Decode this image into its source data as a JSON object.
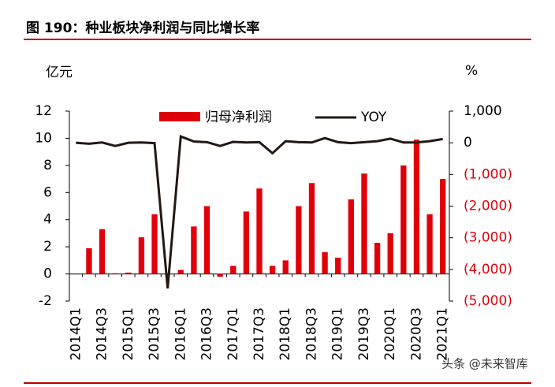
{
  "chart_data": {
    "type": "bar_line",
    "title": "图 190：种业板块净利润与同比增长率",
    "y_label": "亿元",
    "y2_label": "%",
    "watermark": "头条 @未来智库",
    "categories": [
      "2014Q1",
      null,
      "2014Q3",
      null,
      "2015Q1",
      null,
      "2015Q3",
      null,
      "2016Q1",
      null,
      "2016Q3",
      null,
      "2017Q1",
      null,
      "2017Q3",
      null,
      "2018Q1",
      null,
      "2018Q3",
      null,
      "2019Q1",
      null,
      "2019Q3",
      null,
      "2020Q1",
      null,
      "2020Q3",
      null,
      "2021Q1"
    ],
    "series": [
      {
        "name": "归母净利润",
        "type": "bar",
        "color": "#e0000a",
        "values": [
          0,
          1.9,
          3.3,
          0.05,
          0.1,
          2.7,
          4.4,
          0,
          0.3,
          3.5,
          5.0,
          -0.2,
          0.6,
          4.6,
          6.3,
          0.6,
          1.0,
          5.0,
          6.7,
          1.6,
          1.2,
          5.5,
          7.4,
          2.3,
          3.0,
          8.0,
          9.9,
          4.4,
          7.0
        ]
      },
      {
        "name": "YOY",
        "type": "line",
        "color": "#231815",
        "axis": "y2",
        "values": [
          0,
          -30,
          10,
          -100,
          0,
          10,
          -10,
          -4600,
          200,
          40,
          20,
          -100,
          30,
          10,
          20,
          -330,
          50,
          20,
          10,
          150,
          20,
          -10,
          20,
          50,
          130,
          10,
          10,
          50,
          120
        ]
      }
    ],
    "ylim": [
      -2,
      12
    ],
    "yticks": [
      -2,
      0,
      2,
      4,
      6,
      8,
      10,
      12
    ],
    "y2lim": [
      -5000,
      1000
    ],
    "y2ticks": [
      {
        "value": -5000,
        "label": "(5,000)"
      },
      {
        "value": -4000,
        "label": "(4,000)"
      },
      {
        "value": -3000,
        "label": "(3,000)"
      },
      {
        "value": -2000,
        "label": "(2,000)"
      },
      {
        "value": -1000,
        "label": "(1,000)"
      },
      0,
      {
        "value": 1000,
        "label": "1,000"
      }
    ]
  }
}
